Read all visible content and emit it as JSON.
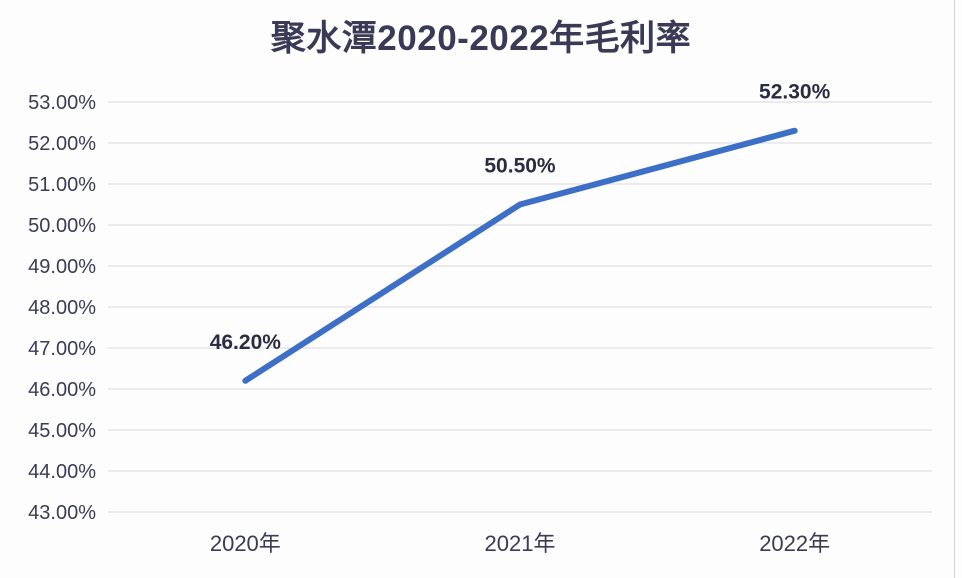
{
  "chart_data": {
    "type": "line",
    "title": "聚水潭2020-2022年毛利率",
    "categories": [
      "2020年",
      "2021年",
      "2022年"
    ],
    "series": [
      {
        "name": "毛利率",
        "values": [
          46.2,
          50.5,
          52.3
        ]
      }
    ],
    "data_labels": [
      "46.20%",
      "50.50%",
      "52.30%"
    ],
    "xlabel": "",
    "ylabel": "",
    "ylim": [
      43,
      53
    ],
    "y_tick_step": 1,
    "y_tick_labels": [
      "53.00%",
      "52.00%",
      "51.00%",
      "50.00%",
      "49.00%",
      "48.00%",
      "47.00%",
      "46.00%",
      "45.00%",
      "44.00%",
      "43.00%"
    ],
    "grid": "horizontal",
    "legend_position": "none",
    "colors": {
      "line": "#3e6fc7",
      "grid": "#d9d9de",
      "axis_text": "#3b3b54",
      "data_label_text": "#2b2b41",
      "title_text": "#3a3a57",
      "background": "#fdfdfe"
    }
  }
}
